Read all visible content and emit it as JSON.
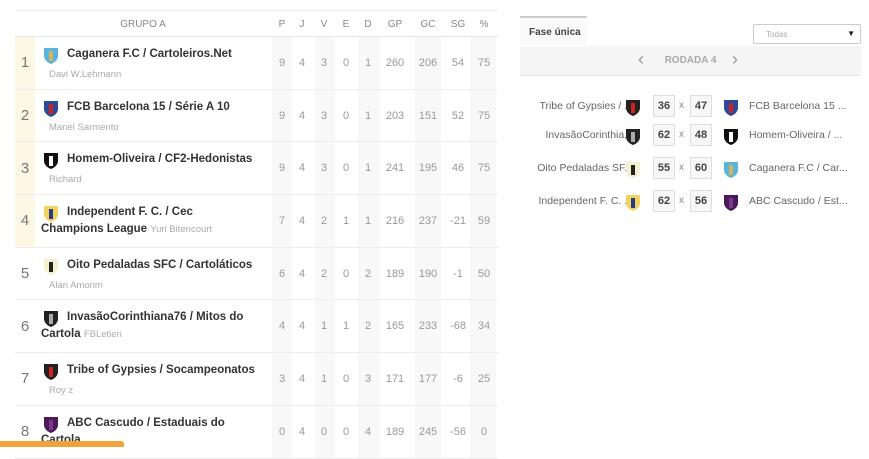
{
  "standings": {
    "group_title": "GRUPO A",
    "columns": [
      "P",
      "J",
      "V",
      "E",
      "D",
      "GP",
      "GC",
      "SG",
      "%"
    ],
    "rows": [
      {
        "rank": "1",
        "team": "Caganera F.C / Cartoleiros.Net",
        "manager": "Davi W.Lehmann",
        "stats": [
          "9",
          "4",
          "3",
          "0",
          "1",
          "260",
          "206",
          "54",
          "75"
        ],
        "logo": "caganera-crest",
        "top": true
      },
      {
        "rank": "2",
        "team": "FCB Barcelona 15 / Série A 10",
        "manager": "Manel Sarmento",
        "stats": [
          "9",
          "4",
          "3",
          "0",
          "1",
          "203",
          "151",
          "52",
          "75"
        ],
        "logo": "barcelona-crest",
        "top": true
      },
      {
        "rank": "3",
        "team": "Homem-Oliveira / CF2-Hedonistas",
        "manager": "Richard",
        "stats": [
          "9",
          "4",
          "3",
          "0",
          "1",
          "241",
          "195",
          "46",
          "75"
        ],
        "logo": "homem-oliveira-crest",
        "top": true
      },
      {
        "rank": "4",
        "team": "Independent F. C. / Cec Champions League",
        "manager": "Yuri Bitencourt",
        "stats": [
          "7",
          "4",
          "2",
          "1",
          "1",
          "216",
          "237",
          "-21",
          "59"
        ],
        "logo": "independent-crest",
        "top": true
      },
      {
        "rank": "5",
        "team": "Oito Pedaladas SFC / Cartoláticos",
        "manager": "Alan Amorim",
        "stats": [
          "6",
          "4",
          "2",
          "0",
          "2",
          "189",
          "190",
          "-1",
          "50"
        ],
        "logo": "oito-pedaladas-crest",
        "top": false
      },
      {
        "rank": "6",
        "team": "InvasãoCorinthiana76 / Mitos do Cartola",
        "manager": "FBLetieri",
        "stats": [
          "4",
          "4",
          "1",
          "1",
          "2",
          "165",
          "233",
          "-68",
          "34"
        ],
        "logo": "invasao-crest",
        "top": false
      },
      {
        "rank": "7",
        "team": "Tribe of Gypsies / Socampeonatos",
        "manager": "Roy z",
        "stats": [
          "3",
          "4",
          "1",
          "0",
          "3",
          "171",
          "177",
          "-6",
          "25"
        ],
        "logo": "tribe-crest",
        "top": false
      },
      {
        "rank": "8",
        "team": "ABC Cascudo / Estaduais do Cartola",
        "manager": "",
        "stats": [
          "0",
          "4",
          "0",
          "0",
          "4",
          "189",
          "245",
          "-56",
          "0"
        ],
        "logo": "abc-crest",
        "top": false
      }
    ]
  },
  "rounds": {
    "tab_label": "Fase única",
    "filter_value": "Todas",
    "round_label": "RODADA 4",
    "matches": [
      {
        "home": "Tribe of Gypsies / ...",
        "home_score": "36",
        "away_score": "47",
        "away": "FCB Barcelona 15 ...",
        "home_logo": "tribe-crest",
        "away_logo": "barcelona-crest"
      },
      {
        "home": "InvasãoCorinthia...",
        "home_score": "62",
        "away_score": "48",
        "away": "Homem-Oliveira / ...",
        "home_logo": "invasao-crest",
        "away_logo": "homem-oliveira-crest"
      },
      {
        "home": "Oito Pedaladas SF...",
        "home_score": "55",
        "away_score": "60",
        "away": "Caganera F.C / Car...",
        "home_logo": "oito-pedaladas-crest",
        "away_logo": "caganera-crest"
      },
      {
        "home": "Independent F. C. ...",
        "home_score": "62",
        "away_score": "56",
        "away": "ABC Cascudo / Est...",
        "home_logo": "independent-crest",
        "away_logo": "abc-crest"
      }
    ],
    "vs": "x"
  },
  "colors": {
    "highlight": "#fcf7e4",
    "accent": "#f0a33a"
  }
}
